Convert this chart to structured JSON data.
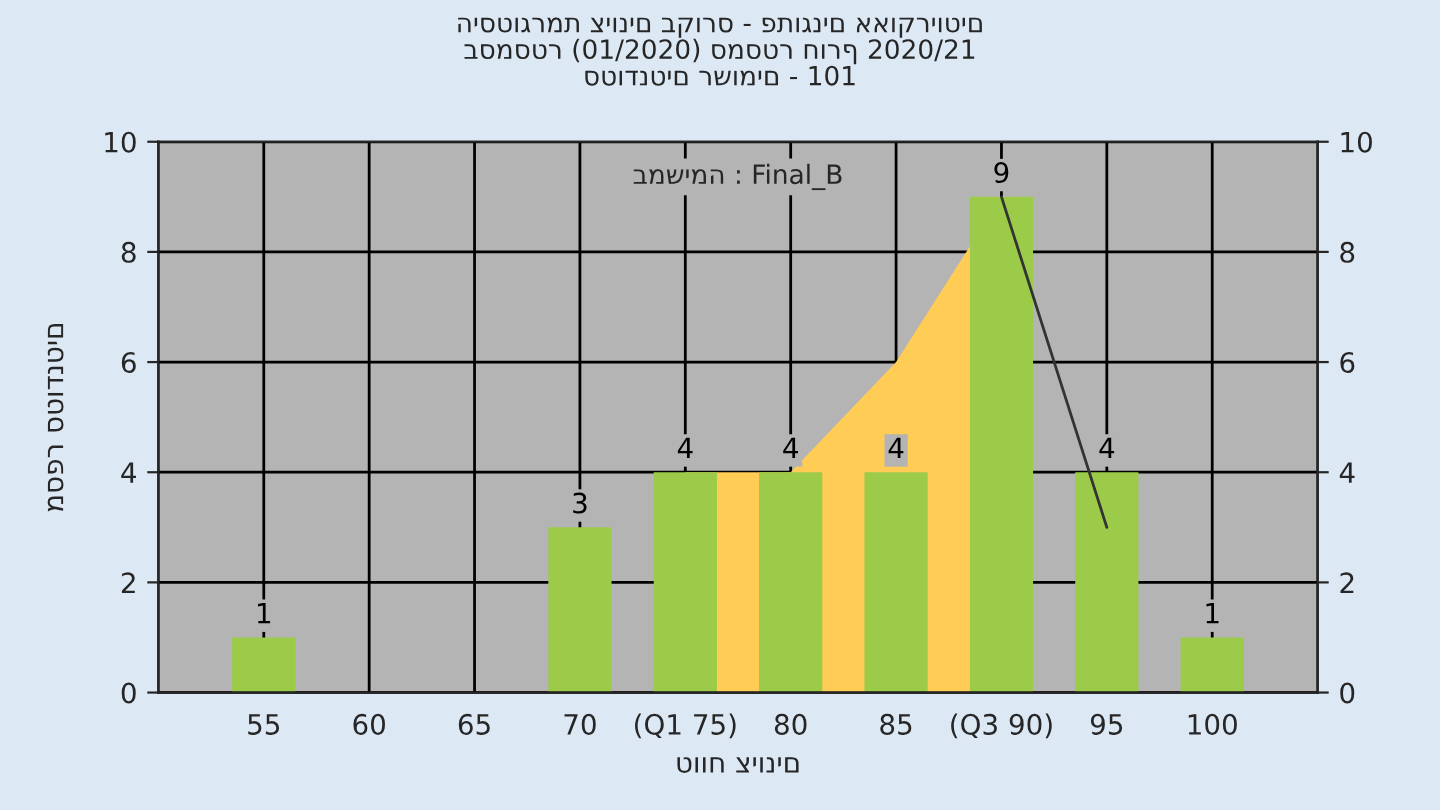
{
  "chart_data": {
    "type": "bar",
    "title": "היסטוגרמת ציונים בקורס - פתוגנים אאוקריוטים\nבסמסטר (01/2020) סמסטר חורף 2020/21\nסטודנטים רשומים - 101",
    "xlabel": "טווח ציונים",
    "ylabel": "מספר סטודנטים",
    "annotations": [
      "במשימה : Final_B"
    ],
    "categories": [
      "55",
      "60",
      "65",
      "70",
      "(Q1 75)",
      "80",
      "85",
      "(Q3 90)",
      "95",
      "100"
    ],
    "series": [
      {
        "type": "area",
        "color": "#ffcc55",
        "values": [
          null,
          null,
          null,
          null,
          4,
          4,
          6,
          9,
          null,
          null
        ]
      },
      {
        "type": "line",
        "color": "#333333",
        "values": [
          null,
          null,
          null,
          null,
          null,
          null,
          null,
          9,
          3,
          null
        ]
      },
      {
        "color": "#9ccb4a",
        "values": [
          1,
          0,
          0,
          3,
          4,
          4,
          4,
          9,
          4,
          1
        ],
        "value_labels": [
          "1",
          null,
          null,
          "3",
          "4",
          "4",
          "4",
          "9",
          "4",
          "1"
        ]
      }
    ],
    "ylim": [
      0,
      10
    ],
    "yticks": [
      0,
      2,
      4,
      6,
      8,
      10
    ],
    "y2lim": [
      0,
      10
    ],
    "y2ticks": [
      0,
      2,
      4,
      6,
      8,
      10
    ],
    "grid": true,
    "legend": false
  }
}
